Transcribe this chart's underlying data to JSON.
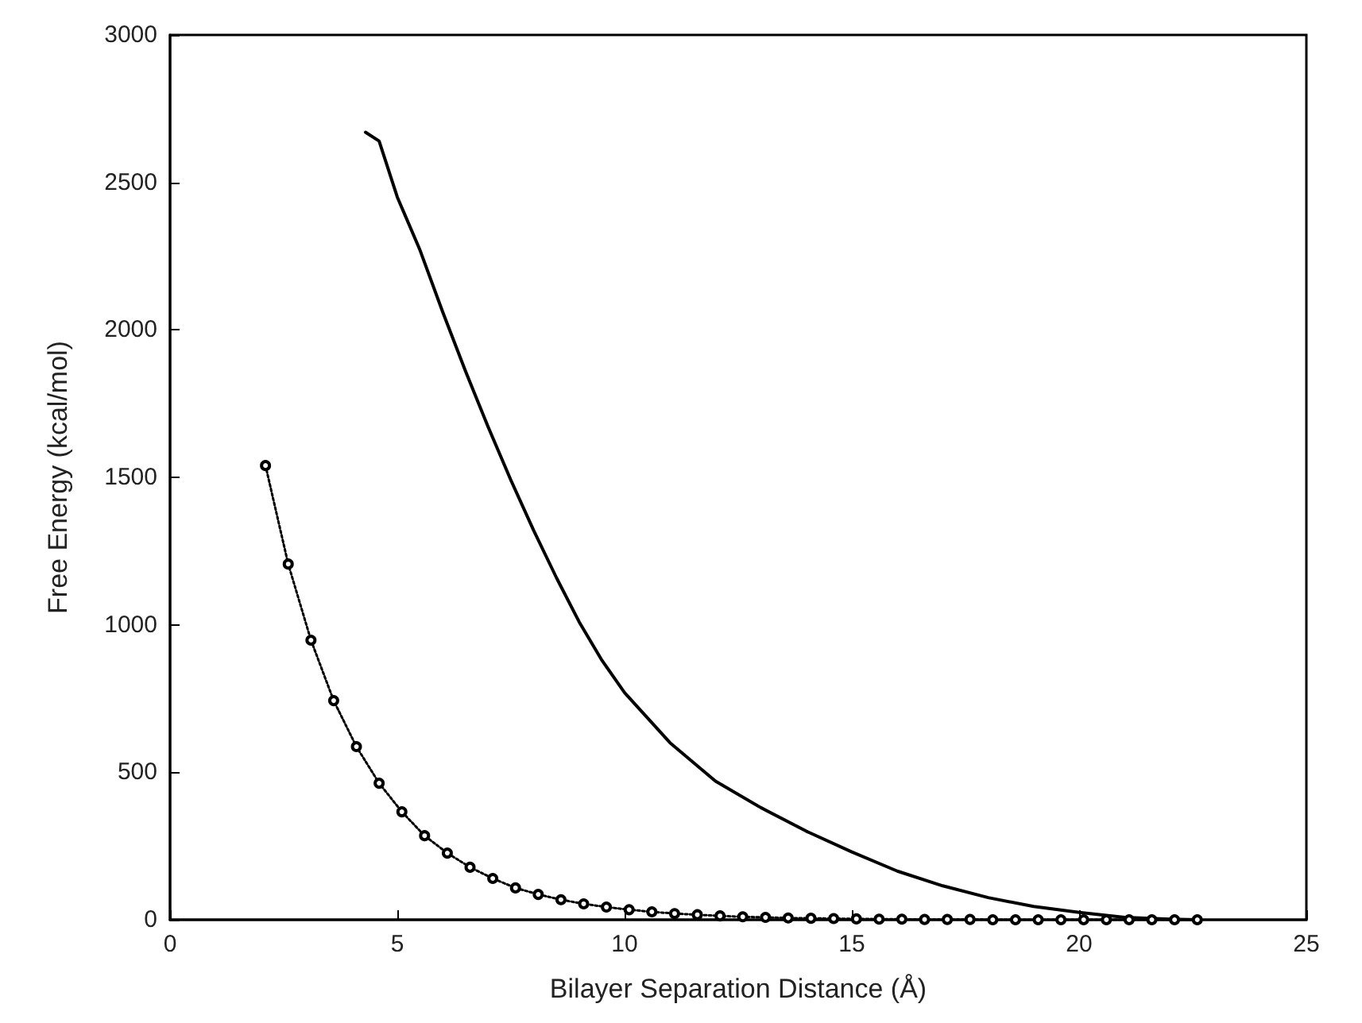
{
  "chart_data": {
    "type": "line",
    "xlabel": "Bilayer Separation Distance (Å)",
    "ylabel": "Free Energy (kcal/mol)",
    "xlim": [
      0,
      25
    ],
    "xticks": [
      0,
      5,
      10,
      15,
      20,
      25
    ],
    "ylim": [
      0,
      3000
    ],
    "yticks": [
      0,
      500,
      1000,
      1500,
      2000,
      2500,
      3000
    ],
    "grid": false,
    "series": [
      {
        "color": "#000000",
        "line_style": "solid",
        "marker": "none",
        "x": [
          4.3,
          4.6,
          5.0,
          5.5,
          6.0,
          6.5,
          7.0,
          7.5,
          8.0,
          8.5,
          9.0,
          9.5,
          10,
          11,
          12,
          13,
          14,
          15,
          16,
          17,
          18,
          19,
          20,
          21,
          22,
          22.6
        ],
        "values": [
          2670,
          2640,
          2450,
          2270,
          2060,
          1860,
          1670,
          1490,
          1320,
          1160,
          1010,
          880,
          770,
          600,
          470,
          380,
          300,
          230,
          165,
          115,
          75,
          45,
          25,
          8,
          2,
          0
        ]
      },
      {
        "color": "#000000",
        "line_style": "dotted",
        "marker": "circle",
        "x": [
          2.1,
          2.6,
          3.1,
          3.6,
          4.1,
          4.6,
          5.1,
          5.6,
          6.1,
          6.6,
          7.1,
          7.6,
          8.1,
          8.6,
          9.1,
          9.6,
          10.1,
          10.6,
          11.1,
          11.6,
          12.1,
          12.6,
          13.1,
          13.6,
          14.1,
          14.6,
          15.1,
          15.6,
          16.1,
          16.6,
          17.1,
          17.6,
          18.1,
          18.6,
          19.1,
          19.6,
          20.1,
          20.6,
          21.1,
          21.6,
          22.1,
          22.6
        ],
        "values": [
          1540,
          1206,
          948,
          743,
          587,
          463,
          366,
          285,
          226,
          178,
          140,
          108,
          86,
          68,
          54,
          43,
          34,
          27,
          21,
          17,
          13,
          10,
          8,
          6,
          5,
          4,
          3,
          2,
          2,
          1,
          1,
          1,
          0,
          0,
          0,
          0,
          0,
          0,
          0,
          0,
          0,
          0
        ]
      }
    ]
  }
}
